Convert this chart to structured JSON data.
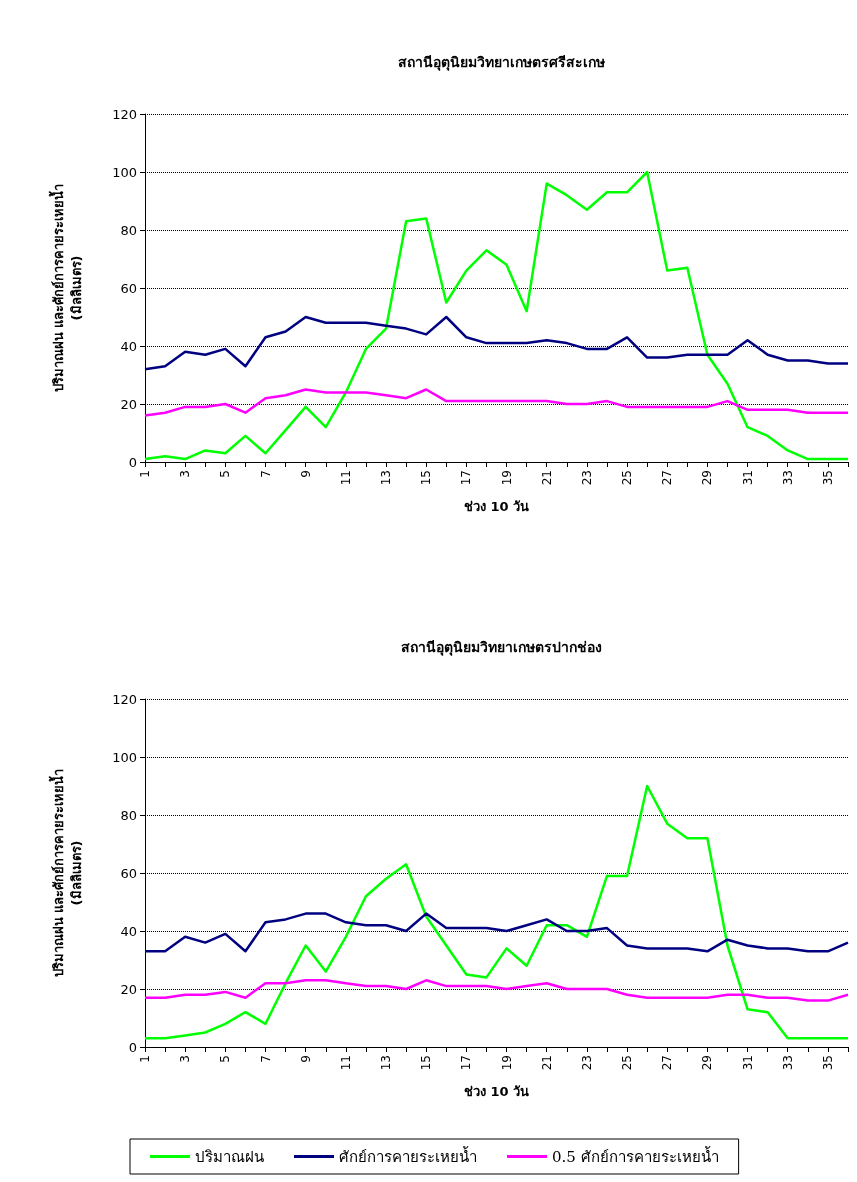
{
  "chart_data": [
    {
      "type": "line",
      "title": "สถานีอุตุนิยมวิทยาเกษตรศรีสะเกษ",
      "xlabel": "ช่วง 10 วัน",
      "ylabel": "ปริมาณฝน และศักย์การคายระเหยน้ำ\n(มิลลิเมตร)",
      "categories": [
        "1",
        null,
        "3",
        null,
        "5",
        null,
        "7",
        null,
        "9",
        null,
        "11",
        null,
        "13",
        null,
        "15",
        null,
        "17",
        null,
        "19",
        null,
        "21",
        null,
        "23",
        null,
        "25",
        null,
        "27",
        null,
        "29",
        null,
        "31",
        null,
        "33",
        null,
        "35",
        null
      ],
      "series": [
        {
          "color": "#00ff00",
          "values": [
            1,
            2,
            1,
            4,
            3,
            9,
            3,
            11,
            19,
            12,
            24,
            39,
            46,
            83,
            84,
            55,
            66,
            73,
            68,
            52,
            96,
            92,
            87,
            93,
            93,
            100,
            66,
            67,
            37,
            27,
            12,
            9,
            4,
            1,
            1,
            1
          ]
        },
        {
          "color": "#000080",
          "values": [
            32,
            33,
            38,
            37,
            39,
            33,
            43,
            45,
            50,
            48,
            48,
            48,
            47,
            46,
            44,
            50,
            43,
            41,
            41,
            41,
            42,
            41,
            39,
            39,
            43,
            36,
            36,
            37,
            37,
            37,
            42,
            37,
            35,
            35,
            34,
            34
          ]
        },
        {
          "color": "#ff00ff",
          "values": [
            16,
            17,
            19,
            19,
            20,
            17,
            22,
            23,
            25,
            24,
            24,
            24,
            23,
            22,
            25,
            21,
            21,
            21,
            21,
            21,
            21,
            20,
            20,
            21,
            19,
            19,
            19,
            19,
            19,
            21,
            18,
            18,
            18,
            17,
            17,
            17
          ]
        }
      ],
      "ylim": [
        0,
        120
      ],
      "yticks": [
        0,
        20,
        40,
        60,
        80,
        100,
        120
      ],
      "grid": "y",
      "marker": "none"
    },
    {
      "type": "line",
      "title": "สถานีอุตุนิยมวิทยาเกษตรปากช่อง",
      "xlabel": "ช่วง 10 วัน",
      "ylabel": "ปริมาณฝน และศักย์การคายระเหยน้ำ\n(มิลลิเมตร)",
      "categories": [
        "1",
        null,
        "3",
        null,
        "5",
        null,
        "7",
        null,
        "9",
        null,
        "11",
        null,
        "13",
        null,
        "15",
        null,
        "17",
        null,
        "19",
        null,
        "21",
        null,
        "23",
        null,
        "25",
        null,
        "27",
        null,
        "29",
        null,
        "31",
        null,
        "33",
        null,
        "35",
        null
      ],
      "series": [
        {
          "name": "ปริมาณฝน",
          "color": "#00ff00",
          "values": [
            3,
            3,
            4,
            5,
            8,
            12,
            8,
            22,
            35,
            26,
            38,
            52,
            58,
            63,
            45,
            35,
            25,
            24,
            34,
            28,
            42,
            42,
            38,
            59,
            59,
            90,
            77,
            72,
            72,
            35,
            13,
            12,
            3,
            3,
            3,
            3
          ]
        },
        {
          "name": "ศักย์การคายระเหยน้ำ",
          "color": "#000080",
          "values": [
            33,
            33,
            38,
            36,
            39,
            33,
            43,
            44,
            46,
            46,
            43,
            42,
            42,
            40,
            46,
            41,
            41,
            41,
            40,
            42,
            44,
            40,
            40,
            41,
            35,
            34,
            34,
            34,
            33,
            37,
            35,
            34,
            34,
            33,
            33,
            36
          ]
        },
        {
          "name": "0.5 ศักย์การคายระเหยน้ำ",
          "color": "#ff00ff",
          "values": [
            17,
            17,
            18,
            18,
            19,
            17,
            22,
            22,
            23,
            23,
            22,
            21,
            21,
            20,
            23,
            21,
            21,
            21,
            20,
            21,
            22,
            20,
            20,
            20,
            18,
            17,
            17,
            17,
            17,
            18,
            18,
            17,
            17,
            16,
            16,
            18
          ]
        }
      ],
      "ylim": [
        0,
        120
      ],
      "yticks": [
        0,
        20,
        40,
        60,
        80,
        100,
        120
      ],
      "grid": "y",
      "marker": "none",
      "legend": "bottom"
    }
  ]
}
